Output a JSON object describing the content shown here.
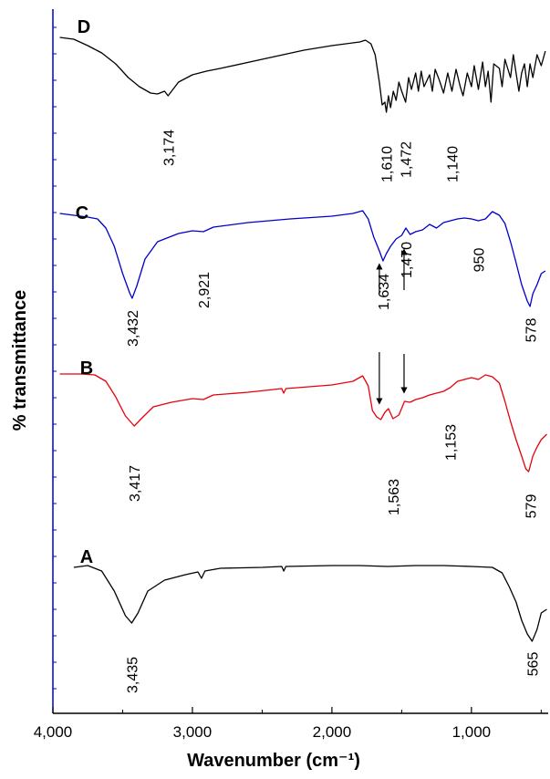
{
  "chart_data": {
    "type": "line",
    "title": "",
    "xlabel": "Wavenumber (cm⁻¹)",
    "ylabel": "% transmittance",
    "xlim": [
      4000,
      450
    ],
    "x_reversed": true,
    "x_ticks": [
      {
        "value": 4000,
        "label": "4,000"
      },
      {
        "value": 3000,
        "label": "3,000"
      },
      {
        "value": 2000,
        "label": "2,000"
      },
      {
        "value": 1000,
        "label": "1,000"
      }
    ],
    "colors": {
      "A": "#000000",
      "B": "#e8000b",
      "C": "#0000cc",
      "D": "#000000",
      "axis_y": "#0000cc"
    },
    "series": [
      {
        "name": "A",
        "color": "#000000",
        "points": [
          [
            3850,
            622
          ],
          [
            3750,
            620
          ],
          [
            3650,
            626
          ],
          [
            3560,
            648
          ],
          [
            3480,
            675
          ],
          [
            3435,
            683
          ],
          [
            3390,
            672
          ],
          [
            3320,
            648
          ],
          [
            3200,
            636
          ],
          [
            3050,
            630
          ],
          [
            2960,
            627
          ],
          [
            2935,
            634
          ],
          [
            2910,
            626
          ],
          [
            2800,
            623
          ],
          [
            2500,
            622
          ],
          [
            2360,
            621
          ],
          [
            2345,
            626
          ],
          [
            2330,
            621
          ],
          [
            2000,
            620
          ],
          [
            1800,
            620
          ],
          [
            1600,
            621
          ],
          [
            1400,
            620
          ],
          [
            1200,
            620
          ],
          [
            1000,
            621
          ],
          [
            850,
            622
          ],
          [
            780,
            628
          ],
          [
            730,
            643
          ],
          [
            680,
            660
          ],
          [
            640,
            680
          ],
          [
            600,
            695
          ],
          [
            565,
            703
          ],
          [
            530,
            690
          ],
          [
            500,
            672
          ],
          [
            460,
            668
          ]
        ],
        "peak_labels": [
          {
            "x": 3435,
            "label": "3,435"
          },
          {
            "x": 565,
            "label": "565"
          }
        ]
      },
      {
        "name": "B",
        "color": "#e8000b",
        "points": [
          [
            3950,
            410
          ],
          [
            3800,
            410
          ],
          [
            3700,
            411
          ],
          [
            3620,
            418
          ],
          [
            3550,
            435
          ],
          [
            3480,
            456
          ],
          [
            3417,
            467
          ],
          [
            3360,
            458
          ],
          [
            3280,
            446
          ],
          [
            3150,
            441
          ],
          [
            3000,
            437
          ],
          [
            2921,
            438
          ],
          [
            2850,
            433
          ],
          [
            2600,
            430
          ],
          [
            2360,
            426
          ],
          [
            2345,
            431
          ],
          [
            2330,
            426
          ],
          [
            2000,
            422
          ],
          [
            1850,
            418
          ],
          [
            1780,
            412
          ],
          [
            1740,
            423
          ],
          [
            1710,
            450
          ],
          [
            1680,
            457
          ],
          [
            1650,
            460
          ],
          [
            1620,
            452
          ],
          [
            1595,
            448
          ],
          [
            1563,
            459
          ],
          [
            1520,
            455
          ],
          [
            1480,
            440
          ],
          [
            1440,
            441
          ],
          [
            1400,
            438
          ],
          [
            1350,
            436
          ],
          [
            1300,
            433
          ],
          [
            1250,
            431
          ],
          [
            1200,
            429
          ],
          [
            1153,
            425
          ],
          [
            1100,
            418
          ],
          [
            1000,
            414
          ],
          [
            950,
            416
          ],
          [
            900,
            411
          ],
          [
            850,
            413
          ],
          [
            800,
            420
          ],
          [
            760,
            440
          ],
          [
            720,
            462
          ],
          [
            680,
            482
          ],
          [
            640,
            500
          ],
          [
            610,
            514
          ],
          [
            590,
            517
          ],
          [
            560,
            500
          ],
          [
            530,
            490
          ],
          [
            500,
            482
          ],
          [
            460,
            476
          ]
        ],
        "peak_labels": [
          {
            "x": 3417,
            "label": "3,417"
          },
          {
            "x": 1563,
            "label": "1,563"
          },
          {
            "x": 1153,
            "label": "1,153"
          },
          {
            "x": 579,
            "label": "579"
          }
        ]
      },
      {
        "name": "C",
        "color": "#0000cc",
        "points": [
          [
            3950,
            234
          ],
          [
            3850,
            236
          ],
          [
            3750,
            238
          ],
          [
            3680,
            240
          ],
          [
            3620,
            250
          ],
          [
            3560,
            270
          ],
          [
            3500,
            300
          ],
          [
            3450,
            321
          ],
          [
            3432,
            327
          ],
          [
            3400,
            314
          ],
          [
            3340,
            284
          ],
          [
            3250,
            265
          ],
          [
            3100,
            256
          ],
          [
            3000,
            253
          ],
          [
            2921,
            254
          ],
          [
            2850,
            249
          ],
          [
            2600,
            244
          ],
          [
            2300,
            240
          ],
          [
            2000,
            237
          ],
          [
            1850,
            234
          ],
          [
            1780,
            231
          ],
          [
            1740,
            240
          ],
          [
            1700,
            260
          ],
          [
            1660,
            275
          ],
          [
            1634,
            286
          ],
          [
            1610,
            278
          ],
          [
            1580,
            270
          ],
          [
            1540,
            262
          ],
          [
            1500,
            258
          ],
          [
            1470,
            250
          ],
          [
            1440,
            257
          ],
          [
            1400,
            254
          ],
          [
            1350,
            252
          ],
          [
            1300,
            246
          ],
          [
            1250,
            250
          ],
          [
            1200,
            244
          ],
          [
            1150,
            242
          ],
          [
            1100,
            240
          ],
          [
            1050,
            239
          ],
          [
            1000,
            240
          ],
          [
            950,
            242
          ],
          [
            900,
            240
          ],
          [
            850,
            232
          ],
          [
            800,
            236
          ],
          [
            760,
            245
          ],
          [
            720,
            265
          ],
          [
            680,
            288
          ],
          [
            640,
            312
          ],
          [
            600,
            330
          ],
          [
            580,
            336
          ],
          [
            560,
            322
          ],
          [
            530,
            312
          ],
          [
            500,
            300
          ],
          [
            470,
            297
          ]
        ],
        "peak_labels": [
          {
            "x": 3432,
            "label": "3,432"
          },
          {
            "x": 2921,
            "label": "2,921"
          },
          {
            "x": 1634,
            "label": "1,634"
          },
          {
            "x": 1470,
            "label": "1,470"
          },
          {
            "x": 950,
            "label": "950"
          },
          {
            "x": 578,
            "label": "578"
          }
        ]
      },
      {
        "name": "D",
        "color": "#000000",
        "points": [
          [
            3950,
            41
          ],
          [
            3850,
            43
          ],
          [
            3750,
            50
          ],
          [
            3650,
            58
          ],
          [
            3550,
            70
          ],
          [
            3460,
            85
          ],
          [
            3380,
            95
          ],
          [
            3300,
            102
          ],
          [
            3250,
            103
          ],
          [
            3200,
            100
          ],
          [
            3174,
            105
          ],
          [
            3100,
            90
          ],
          [
            3000,
            82
          ],
          [
            2900,
            78
          ],
          [
            2800,
            75
          ],
          [
            2500,
            65
          ],
          [
            2200,
            55
          ],
          [
            2000,
            50
          ],
          [
            1900,
            48
          ],
          [
            1800,
            46
          ],
          [
            1760,
            44
          ],
          [
            1720,
            48
          ],
          [
            1690,
            60
          ],
          [
            1660,
            90
          ],
          [
            1640,
            115
          ],
          [
            1620,
            112
          ],
          [
            1610,
            123
          ],
          [
            1595,
            105
          ],
          [
            1580,
            118
          ],
          [
            1560,
            100
          ],
          [
            1540,
            110
          ],
          [
            1520,
            90
          ],
          [
            1500,
            100
          ],
          [
            1472,
            112
          ],
          [
            1450,
            85
          ],
          [
            1430,
            98
          ],
          [
            1400,
            80
          ],
          [
            1380,
            100
          ],
          [
            1360,
            78
          ],
          [
            1340,
            95
          ],
          [
            1300,
            82
          ],
          [
            1280,
            100
          ],
          [
            1260,
            76
          ],
          [
            1230,
            88
          ],
          [
            1200,
            102
          ],
          [
            1170,
            80
          ],
          [
            1140,
            100
          ],
          [
            1110,
            76
          ],
          [
            1080,
            95
          ],
          [
            1060,
            105
          ],
          [
            1030,
            80
          ],
          [
            1000,
            95
          ],
          [
            980,
            72
          ],
          [
            950,
            98
          ],
          [
            920,
            68
          ],
          [
            900,
            95
          ],
          [
            880,
            78
          ],
          [
            860,
            112
          ],
          [
            840,
            70
          ],
          [
            800,
            75
          ],
          [
            780,
            95
          ],
          [
            760,
            65
          ],
          [
            740,
            75
          ],
          [
            720,
            85
          ],
          [
            700,
            60
          ],
          [
            680,
            80
          ],
          [
            660,
            100
          ],
          [
            640,
            80
          ],
          [
            620,
            70
          ],
          [
            600,
            95
          ],
          [
            580,
            70
          ],
          [
            560,
            85
          ],
          [
            530,
            60
          ],
          [
            500,
            72
          ],
          [
            470,
            56
          ]
        ],
        "peak_labels": [
          {
            "x": 3174,
            "label": "3,174"
          },
          {
            "x": 1610,
            "label": "1,610"
          },
          {
            "x": 1472,
            "label": "1,472"
          },
          {
            "x": 1140,
            "label": "1,140"
          }
        ]
      }
    ],
    "annotations": {
      "arrows": [
        {
          "x": 1634,
          "from": "C",
          "to": "B",
          "dir": "down"
        },
        {
          "x": 1470,
          "from": "C",
          "to": "B",
          "dir": "down"
        }
      ]
    }
  }
}
